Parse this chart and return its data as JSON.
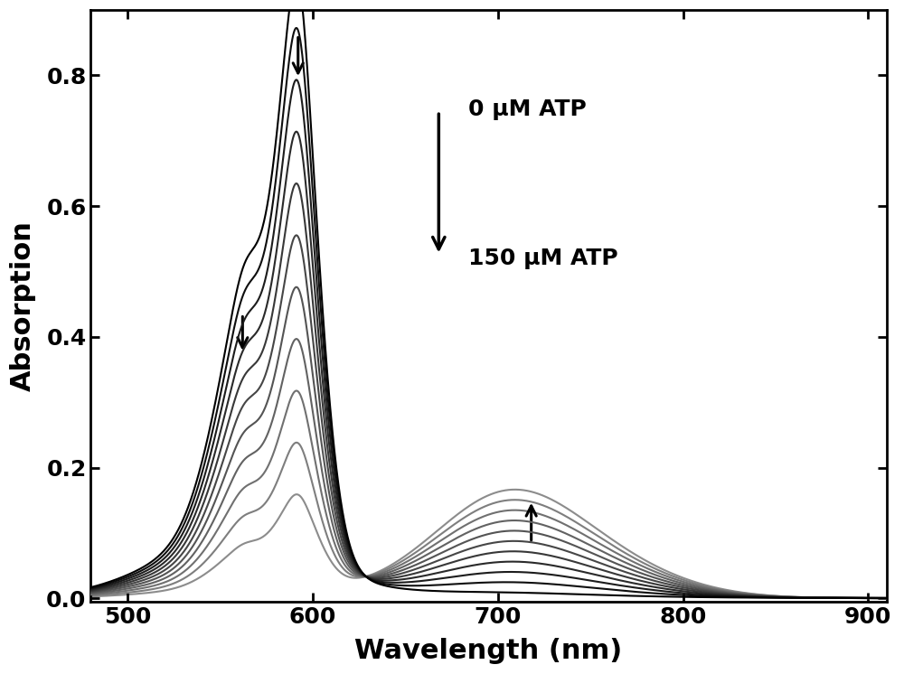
{
  "xlim": [
    480,
    910
  ],
  "ylim": [
    -0.005,
    0.9
  ],
  "xlabel": "Wavelength (nm)",
  "ylabel": "Absorption",
  "xlabel_fontsize": 22,
  "ylabel_fontsize": 22,
  "tick_fontsize": 18,
  "num_curves": 11,
  "atp_concentrations": [
    0,
    15,
    30,
    45,
    60,
    75,
    90,
    105,
    120,
    135,
    150
  ],
  "background_color": "#ffffff",
  "legend_text1": "0 μM ATP",
  "legend_text2": "150 μM ATP",
  "legend_fontsize": 18
}
